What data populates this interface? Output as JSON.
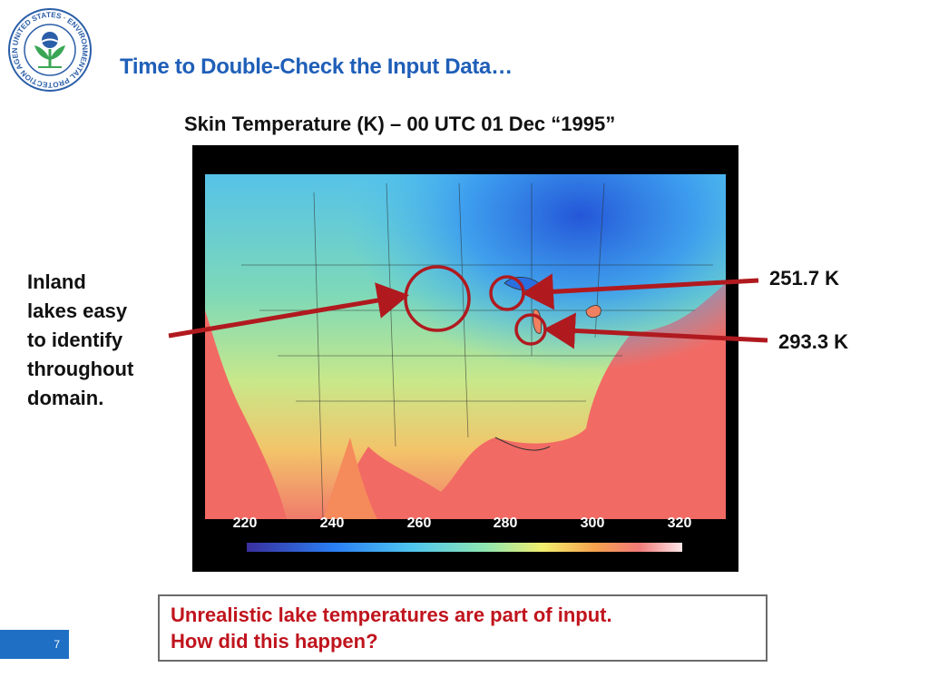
{
  "logo": {
    "ring_text": "UNITED STATES · ENVIRONMENTAL PROTECTION AGENCY",
    "icon": "epa-seal-icon"
  },
  "slide": {
    "title": "Time to Double-Check the Input Data…",
    "page_number": "7"
  },
  "figure": {
    "title": "Skin Temperature (K) – 00 UTC 01 Dec “1995”",
    "colorbar": {
      "ticks": [
        "220",
        "240",
        "260",
        "280",
        "300",
        "320"
      ],
      "range": [
        220,
        325
      ]
    }
  },
  "annotations": {
    "left_note": [
      "Inland",
      "lakes easy",
      "to identify",
      "throughout",
      "domain."
    ],
    "value_upper": "251.7 K",
    "value_lower": "293.3 K"
  },
  "callout": {
    "line1": "Unrealistic lake temperatures are part of input.",
    "line2": "How did this happen?"
  },
  "colors": {
    "title_blue": "#1f5fb8",
    "arrow_red": "#b01a1f",
    "callout_red": "#c0141d",
    "badge_blue": "#1f6fc4"
  }
}
